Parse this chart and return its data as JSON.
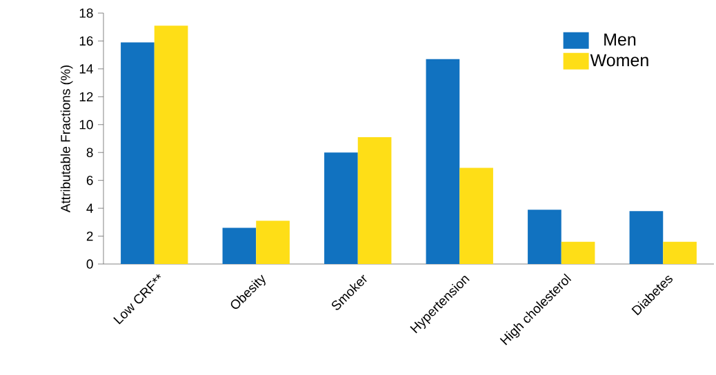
{
  "chart_data": {
    "type": "bar",
    "ylabel": "Attributable Fractions (%)",
    "categories": [
      "Low CRF**",
      "Obesity",
      "Smoker",
      "Hypertension",
      "High cholesterol",
      "Diabetes"
    ],
    "series": [
      {
        "name": "Men",
        "color": "#1172c0",
        "values": [
          15.9,
          2.6,
          8.0,
          14.7,
          3.9,
          3.8
        ]
      },
      {
        "name": "Women",
        "color": "#fede17",
        "values": [
          17.1,
          3.1,
          9.1,
          6.9,
          1.6,
          1.6
        ]
      }
    ],
    "ylim": [
      0,
      18
    ],
    "yticks": [
      0,
      2,
      4,
      6,
      8,
      10,
      12,
      14,
      16,
      18
    ],
    "legend": "top right"
  }
}
